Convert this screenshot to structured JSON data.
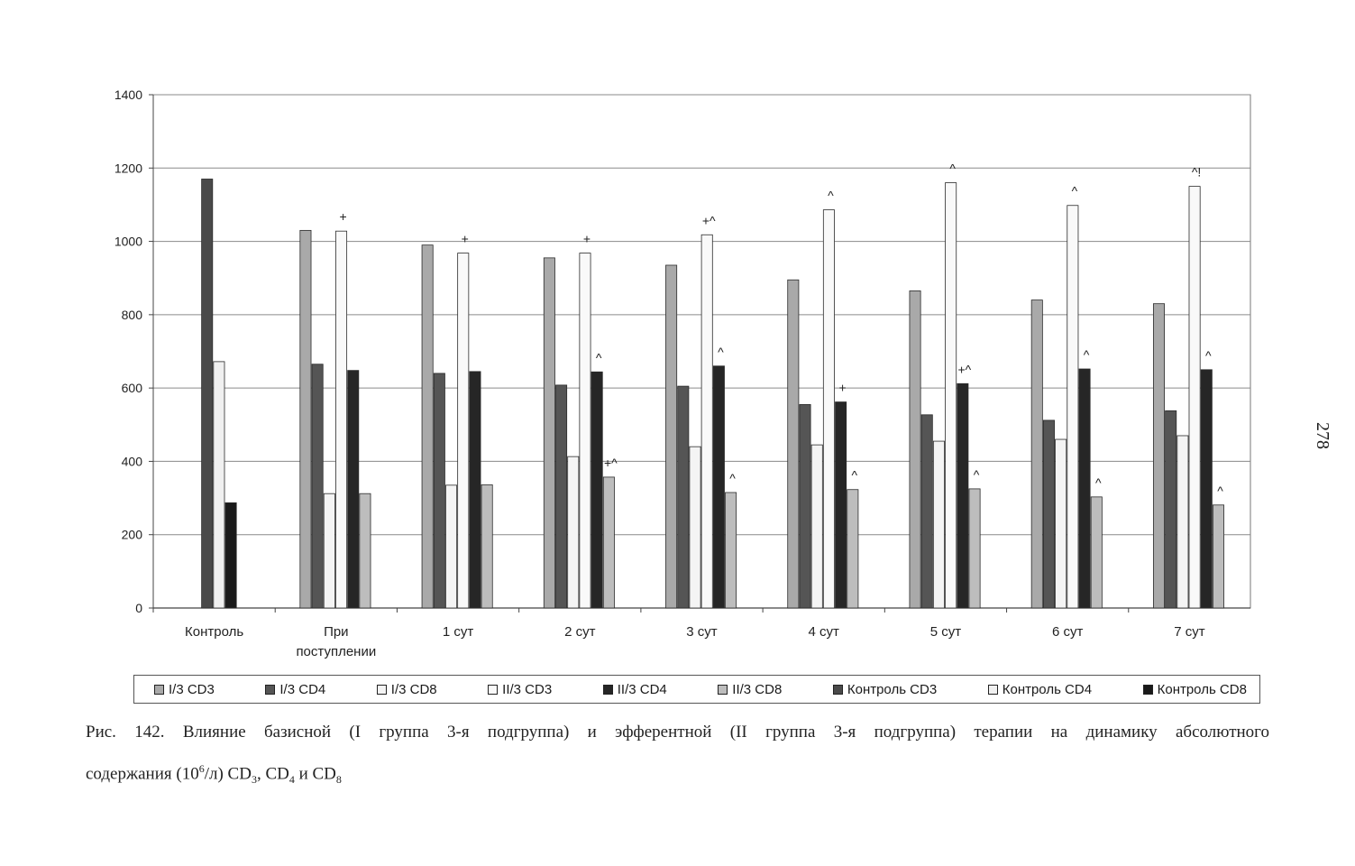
{
  "chart_data": {
    "type": "bar",
    "ylim": [
      0,
      1400
    ],
    "yticks": [
      0,
      200,
      400,
      600,
      800,
      1000,
      1200,
      1400
    ],
    "grid": true,
    "legend_position": "bottom",
    "categories": [
      "Контроль",
      "При поступлении",
      "1 сут",
      "2 сут",
      "3 сут",
      "4 сут",
      "5 сут",
      "6 сут",
      "7 сут"
    ],
    "series": [
      {
        "name": "I/3 CD3",
        "color": "#a9a9a9",
        "values": [
          null,
          1030,
          990,
          955,
          935,
          895,
          865,
          840,
          830
        ]
      },
      {
        "name": "I/3 CD4",
        "color": "#555555",
        "values": [
          null,
          665,
          640,
          608,
          605,
          555,
          527,
          512,
          538
        ]
      },
      {
        "name": "I/3 CD8",
        "color": "#f4f4f4",
        "values": [
          null,
          312,
          335,
          413,
          440,
          445,
          455,
          460,
          470
        ]
      },
      {
        "name": "II/3 CD3",
        "color": "#f9f9f9",
        "values": [
          null,
          1028,
          968,
          968,
          1018,
          1086,
          1160,
          1098,
          1150
        ]
      },
      {
        "name": "II/3 CD4",
        "color": "#262626",
        "values": [
          null,
          648,
          645,
          644,
          660,
          562,
          612,
          652,
          650
        ]
      },
      {
        "name": "II/3 CD8",
        "color": "#bdbdbd",
        "values": [
          null,
          312,
          336,
          357,
          315,
          323,
          325,
          303,
          281
        ]
      },
      {
        "name": "Контроль CD3",
        "color": "#4a4a4a",
        "values": [
          1170,
          null,
          null,
          null,
          null,
          null,
          null,
          null,
          null
        ]
      },
      {
        "name": "Контроль CD4",
        "color": "#f0f0f0",
        "values": [
          672,
          null,
          null,
          null,
          null,
          null,
          null,
          null,
          null
        ]
      },
      {
        "name": "Контроль CD8",
        "color": "#1a1a1a",
        "values": [
          287,
          null,
          null,
          null,
          null,
          null,
          null,
          null,
          null
        ]
      }
    ],
    "annotations": [
      {
        "category": "При поступлении",
        "series": "II/3 CD3",
        "text": "+"
      },
      {
        "category": "1 сут",
        "series": "II/3 CD3",
        "text": "+"
      },
      {
        "category": "2 сут",
        "series": "II/3 CD3",
        "text": "+"
      },
      {
        "category": "2 сут",
        "series": "II/3 CD4",
        "text": "^"
      },
      {
        "category": "2 сут",
        "series": "II/3 CD8",
        "text": "+^"
      },
      {
        "category": "3 сут",
        "series": "II/3 CD3",
        "text": "+^"
      },
      {
        "category": "3 сут",
        "series": "II/3 CD4",
        "text": "^"
      },
      {
        "category": "3 сут",
        "series": "II/3 CD8",
        "text": "^"
      },
      {
        "category": "4 сут",
        "series": "II/3 CD3",
        "text": "^"
      },
      {
        "category": "4 сут",
        "series": "II/3 CD4",
        "text": "+"
      },
      {
        "category": "4 сут",
        "series": "II/3 CD8",
        "text": "^"
      },
      {
        "category": "5 сут",
        "series": "II/3 CD3",
        "text": "^"
      },
      {
        "category": "5 сут",
        "series": "II/3 CD4",
        "text": "+^"
      },
      {
        "category": "5 сут",
        "series": "II/3 CD8",
        "text": "^"
      },
      {
        "category": "6 сут",
        "series": "II/3 CD3",
        "text": "^"
      },
      {
        "category": "6 сут",
        "series": "II/3 CD4",
        "text": "^"
      },
      {
        "category": "6 сут",
        "series": "II/3 CD8",
        "text": "^"
      },
      {
        "category": "7 сут",
        "series": "II/3 CD3",
        "text": "^!"
      },
      {
        "category": "7 сут",
        "series": "II/3 CD4",
        "text": "^"
      },
      {
        "category": "7 сут",
        "series": "II/3 CD8",
        "text": "^"
      }
    ]
  },
  "caption": {
    "line1": "Рис. 142. Влияние базисной (I группа 3-я подгруппа) и эфферентной (II группа 3-я подгруппа) терапии на динамику абсолютного",
    "line2_start": "содержания (10",
    "line2_sup": "6",
    "line2_mid": "/л) CD",
    "sub1": "3",
    "sep1": ", CD",
    "sub2": "4",
    "sep2": " и CD",
    "sub3": "8"
  },
  "page_number": "278"
}
